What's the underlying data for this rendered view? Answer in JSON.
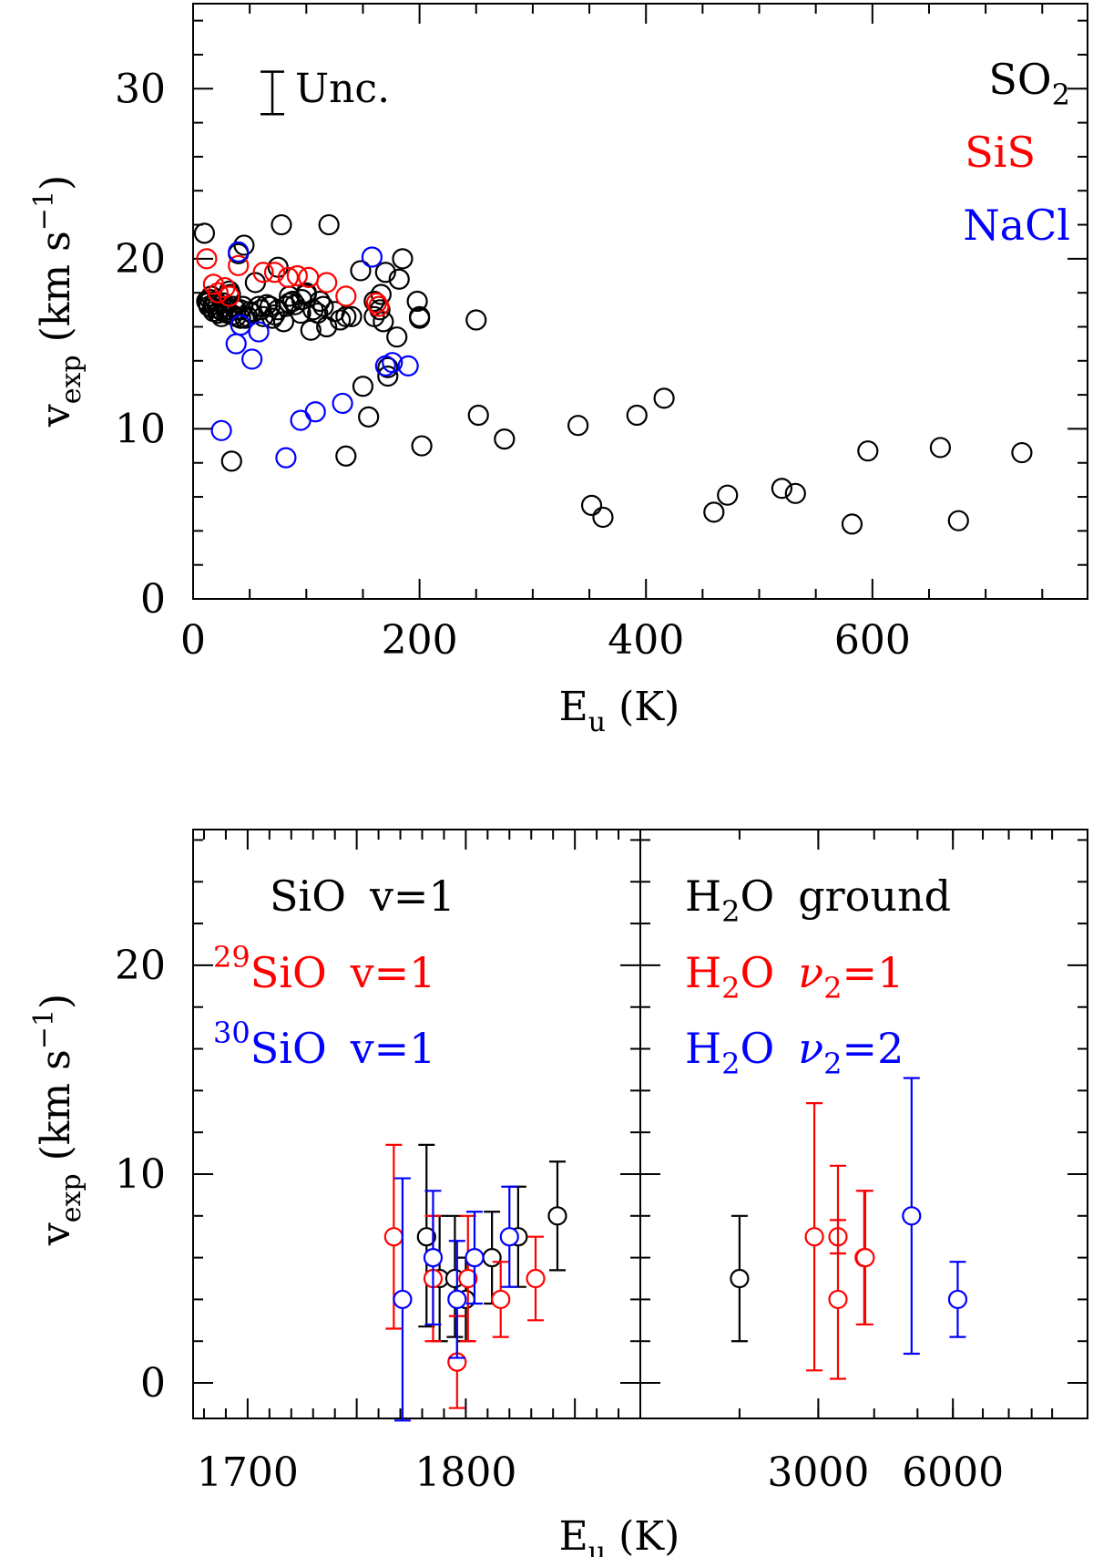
{
  "chart_data": [
    {
      "type": "scatter",
      "panel": "top",
      "xlabel": "E",
      "xlabel_sub": "u",
      "xlabel_unit": "(K)",
      "ylabel_main": "v",
      "ylabel_sub": "exp",
      "ylabel_unit_a": "(km s",
      "ylabel_unit_sup": "−1",
      "ylabel_unit_b": ")",
      "xlim": [
        0,
        790
      ],
      "ylim": [
        0,
        35
      ],
      "xticks": [
        0,
        200,
        400,
        600
      ],
      "xtick_labels": [
        "0",
        "200",
        "400",
        "600"
      ],
      "yticks": [
        0,
        10,
        20,
        30
      ],
      "ytick_labels": [
        "0",
        "10",
        "20",
        "30"
      ],
      "uncertainty": {
        "label": "Unc.",
        "x": 70,
        "y_low": 28.5,
        "y_high": 31.0
      },
      "series": [
        {
          "name": "SO",
          "sub": "2",
          "color": "#000000",
          "x": [
            10,
            12,
            13,
            14,
            15,
            16,
            17,
            18,
            18,
            20,
            22,
            22,
            24,
            25,
            26,
            27,
            28,
            30,
            30,
            32,
            33,
            34,
            35,
            36,
            38,
            38,
            40,
            42,
            42,
            44,
            45,
            46,
            48,
            50,
            52,
            55,
            58,
            60,
            62,
            65,
            68,
            70,
            72,
            75,
            75,
            78,
            80,
            82,
            85,
            85,
            88,
            90,
            95,
            96,
            100,
            100,
            104,
            106,
            110,
            112,
            115,
            118,
            120,
            125,
            130,
            135,
            135,
            140,
            148,
            150,
            155,
            160,
            160,
            165,
            166,
            168,
            170,
            172,
            172,
            180,
            182,
            185,
            198,
            200,
            200,
            202,
            250,
            252,
            275,
            340,
            352,
            362,
            392,
            416,
            460,
            472,
            520,
            532,
            582,
            596,
            660,
            676,
            732
          ],
          "y": [
            21.5,
            17.5,
            17.4,
            17.2,
            17.6,
            17.8,
            17.1,
            16.9,
            17.3,
            17.5,
            17.3,
            16.8,
            17.0,
            16.6,
            16.9,
            17.4,
            17.2,
            16.8,
            17.0,
            18.1,
            17.9,
            8.1,
            16.7,
            17.2,
            17.0,
            16.6,
            20.3,
            16.5,
            17.0,
            17.2,
            20.8,
            16.5,
            16.6,
            16.9,
            16.8,
            18.6,
            17.2,
            17.0,
            16.6,
            17.3,
            17.2,
            16.5,
            16.7,
            17.0,
            19.5,
            22.0,
            16.3,
            17.2,
            17.8,
            17.4,
            17.5,
            17.3,
            16.8,
            17.6,
            17.9,
            18.0,
            15.8,
            17.0,
            16.8,
            17.5,
            17.2,
            16.0,
            22.0,
            16.9,
            16.4,
            8.4,
            16.6,
            16.6,
            19.3,
            12.5,
            10.7,
            16.6,
            17.5,
            17.0,
            17.9,
            16.3,
            19.2,
            13.1,
            13.6,
            15.4,
            18.8,
            20.0,
            17.5,
            16.5,
            16.6,
            9.0,
            16.4,
            10.8,
            9.4,
            10.2,
            5.5,
            4.8,
            10.8,
            11.8,
            5.1,
            6.1,
            6.5,
            6.2,
            4.4,
            8.7,
            8.9,
            4.6,
            8.6
          ]
        },
        {
          "name": "SiS",
          "color": "#ff0000",
          "x": [
            12,
            18,
            22,
            28,
            32,
            40,
            62,
            72,
            84,
            92,
            102,
            118,
            135,
            162,
            164
          ],
          "y": [
            20.0,
            18.5,
            18.0,
            18.3,
            17.8,
            19.6,
            19.2,
            19.2,
            18.9,
            19.0,
            18.9,
            18.6,
            17.8,
            17.4,
            17.2
          ]
        },
        {
          "name": "NaCl",
          "color": "#0000ff",
          "x": [
            25,
            38,
            40,
            42,
            52,
            58,
            82,
            95,
            108,
            132,
            158,
            170,
            176,
            190
          ],
          "y": [
            9.9,
            15.0,
            20.4,
            16.1,
            14.1,
            15.7,
            8.3,
            10.5,
            11.0,
            11.5,
            20.1,
            13.7,
            13.9,
            13.7
          ]
        }
      ]
    },
    {
      "type": "scatter",
      "panel": "bottom-left",
      "xlabel": "E",
      "xlabel_sub": "u",
      "xlabel_unit": "(K)",
      "ylabel_main": "v",
      "ylabel_sub": "exp",
      "ylabel_unit_a": "(km s",
      "ylabel_unit_sup": "−1",
      "ylabel_unit_b": ")",
      "xlim": [
        1675,
        1880
      ],
      "ylim": [
        -1.7,
        26.5
      ],
      "xticks": [
        1700,
        1800
      ],
      "xtick_labels": [
        "1700",
        "1800"
      ],
      "yticks": [
        0,
        10,
        20
      ],
      "ytick_labels": [
        "0",
        "10",
        "20"
      ],
      "series": [
        {
          "name": "SiO",
          "label_suffix": "v=1",
          "color": "#000000",
          "points": [
            {
              "x": 1782,
              "y": 7.0,
              "lo": 2.7,
              "hi": 11.4
            },
            {
              "x": 1788,
              "y": 5.0,
              "lo": 2.0,
              "hi": 8.0
            },
            {
              "x": 1795,
              "y": 5.0,
              "lo": 2.2,
              "hi": 8.0
            },
            {
              "x": 1800,
              "y": 4.0,
              "lo": 2.0,
              "hi": 6.0
            },
            {
              "x": 1812,
              "y": 6.0,
              "lo": 3.8,
              "hi": 8.2
            },
            {
              "x": 1824,
              "y": 7.0,
              "lo": 4.6,
              "hi": 9.4
            },
            {
              "x": 1842,
              "y": 8.0,
              "lo": 5.4,
              "hi": 10.6
            }
          ]
        },
        {
          "name": "SiO",
          "iso": "29",
          "label_suffix": "v=1",
          "color": "#ff0000",
          "points": [
            {
              "x": 1767,
              "y": 7.0,
              "lo": 2.6,
              "hi": 11.4
            },
            {
              "x": 1785,
              "y": 5.0,
              "lo": 2.0,
              "hi": 8.0
            },
            {
              "x": 1796,
              "y": 1.0,
              "lo": -1.2,
              "hi": 3.2
            },
            {
              "x": 1801,
              "y": 5.0,
              "lo": 2.0,
              "hi": 8.0
            },
            {
              "x": 1816,
              "y": 4.0,
              "lo": 2.2,
              "hi": 5.8
            },
            {
              "x": 1832,
              "y": 5.0,
              "lo": 3.0,
              "hi": 7.0
            }
          ]
        },
        {
          "name": "SiO",
          "iso": "30",
          "label_suffix": "v=1",
          "color": "#0000ff",
          "points": [
            {
              "x": 1771,
              "y": 4.0,
              "lo": -1.8,
              "hi": 9.8
            },
            {
              "x": 1785,
              "y": 6.0,
              "lo": 2.8,
              "hi": 9.2
            },
            {
              "x": 1796,
              "y": 4.0,
              "lo": 1.2,
              "hi": 6.8
            },
            {
              "x": 1804,
              "y": 6.0,
              "lo": 3.8,
              "hi": 8.2
            },
            {
              "x": 1820,
              "y": 7.0,
              "lo": 4.6,
              "hi": 9.4
            }
          ]
        }
      ]
    },
    {
      "type": "scatter",
      "panel": "bottom-right",
      "xscale": "log",
      "xlim": [
        1200,
        12000
      ],
      "ylim": [
        -1.7,
        26.5
      ],
      "xticks": [
        3000,
        6000
      ],
      "xtick_labels": [
        "3000",
        "6000"
      ],
      "yticks": [
        0,
        10,
        20
      ],
      "series": [
        {
          "name": "H",
          "sub": "2",
          "tail": "O",
          "label_suffix": "ground",
          "color": "#000000",
          "points": [
            {
              "x": 2000,
              "y": 5.0,
              "lo": 2.0,
              "hi": 8.0
            }
          ]
        },
        {
          "name": "H",
          "sub": "2",
          "tail": "O",
          "label_greek": "ν",
          "label_greek_sub": "2",
          "label_suffix": "=1",
          "color": "#ff0000",
          "points": [
            {
              "x": 2940,
              "y": 7.0,
              "lo": 0.6,
              "hi": 13.4
            },
            {
              "x": 3320,
              "y": 7.0,
              "lo": 6.2,
              "hi": 7.8
            },
            {
              "x": 3320,
              "y": 4.0,
              "lo": 0.2,
              "hi": 10.4
            },
            {
              "x": 3800,
              "y": 6.0,
              "lo": 2.8,
              "hi": 9.2
            },
            {
              "x": 3820,
              "y": 6.0,
              "lo": 2.8,
              "hi": 9.2
            }
          ]
        },
        {
          "name": "H",
          "sub": "2",
          "tail": "O",
          "label_greek": "ν",
          "label_greek_sub": "2",
          "label_suffix": "=2",
          "color": "#0000ff",
          "points": [
            {
              "x": 4850,
              "y": 8.0,
              "lo": 1.4,
              "hi": 14.6
            },
            {
              "x": 6150,
              "y": 4.0,
              "lo": 2.2,
              "hi": 5.8
            }
          ]
        }
      ]
    }
  ]
}
